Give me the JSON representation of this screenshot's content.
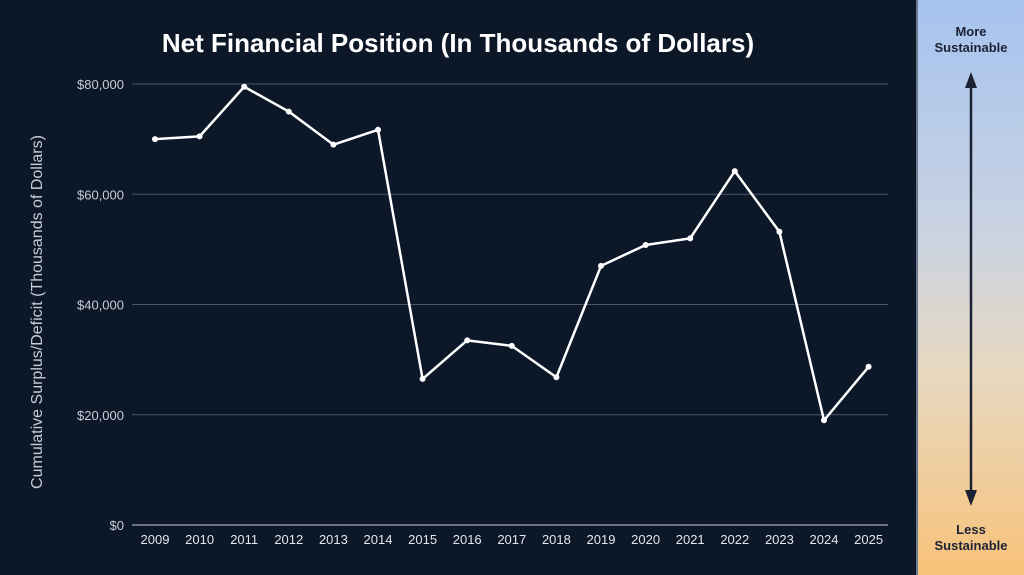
{
  "chart_data": {
    "type": "line",
    "title": "Net Financial Position (In Thousands of Dollars)",
    "ylabel": "Cumulative Surplus/Deficit (Thousands of Dollars)",
    "xlabel": "",
    "x": [
      "2009",
      "2010",
      "2011",
      "2012",
      "2013",
      "2014",
      "2015",
      "2016",
      "2017",
      "2018",
      "2019",
      "2020",
      "2021",
      "2022",
      "2023",
      "2024",
      "2025"
    ],
    "series": [
      {
        "values": [
          70000,
          70500,
          79500,
          75000,
          69000,
          71700,
          26500,
          33500,
          32500,
          26800,
          47000,
          50800,
          52000,
          64200,
          53200,
          19000,
          28700
        ]
      }
    ],
    "ylim": [
      0,
      80000
    ],
    "yticks": [
      0,
      20000,
      40000,
      60000,
      80000
    ],
    "ytick_labels": [
      "$0",
      "$20,000",
      "$40,000",
      "$60,000",
      "$80,000"
    ],
    "grid": true,
    "line_color": "#ffffff",
    "background": "#0c1728",
    "grid_color": "#4a5568"
  },
  "scale": {
    "top_label_line1": "More",
    "top_label_line2": "Sustainable",
    "bottom_label_line1": "Less",
    "bottom_label_line2": "Sustainable"
  }
}
